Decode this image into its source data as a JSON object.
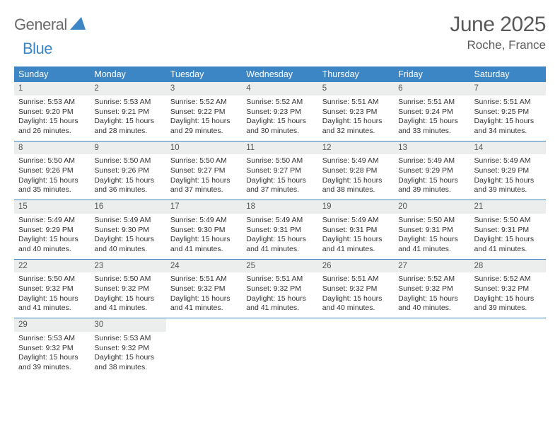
{
  "logo": {
    "text1": "General",
    "text2": "Blue"
  },
  "title": "June 2025",
  "location": "Roche, France",
  "colors": {
    "header_bg": "#3d86c6",
    "header_text": "#ffffff",
    "daynum_bg": "#eceded",
    "border": "#3d86c6",
    "text": "#333333",
    "title_text": "#5a5a5a"
  },
  "day_names": [
    "Sunday",
    "Monday",
    "Tuesday",
    "Wednesday",
    "Thursday",
    "Friday",
    "Saturday"
  ],
  "weeks": [
    [
      {
        "n": "1",
        "sr": "Sunrise: 5:53 AM",
        "ss": "Sunset: 9:20 PM",
        "d1": "Daylight: 15 hours",
        "d2": "and 26 minutes."
      },
      {
        "n": "2",
        "sr": "Sunrise: 5:53 AM",
        "ss": "Sunset: 9:21 PM",
        "d1": "Daylight: 15 hours",
        "d2": "and 28 minutes."
      },
      {
        "n": "3",
        "sr": "Sunrise: 5:52 AM",
        "ss": "Sunset: 9:22 PM",
        "d1": "Daylight: 15 hours",
        "d2": "and 29 minutes."
      },
      {
        "n": "4",
        "sr": "Sunrise: 5:52 AM",
        "ss": "Sunset: 9:23 PM",
        "d1": "Daylight: 15 hours",
        "d2": "and 30 minutes."
      },
      {
        "n": "5",
        "sr": "Sunrise: 5:51 AM",
        "ss": "Sunset: 9:23 PM",
        "d1": "Daylight: 15 hours",
        "d2": "and 32 minutes."
      },
      {
        "n": "6",
        "sr": "Sunrise: 5:51 AM",
        "ss": "Sunset: 9:24 PM",
        "d1": "Daylight: 15 hours",
        "d2": "and 33 minutes."
      },
      {
        "n": "7",
        "sr": "Sunrise: 5:51 AM",
        "ss": "Sunset: 9:25 PM",
        "d1": "Daylight: 15 hours",
        "d2": "and 34 minutes."
      }
    ],
    [
      {
        "n": "8",
        "sr": "Sunrise: 5:50 AM",
        "ss": "Sunset: 9:26 PM",
        "d1": "Daylight: 15 hours",
        "d2": "and 35 minutes."
      },
      {
        "n": "9",
        "sr": "Sunrise: 5:50 AM",
        "ss": "Sunset: 9:26 PM",
        "d1": "Daylight: 15 hours",
        "d2": "and 36 minutes."
      },
      {
        "n": "10",
        "sr": "Sunrise: 5:50 AM",
        "ss": "Sunset: 9:27 PM",
        "d1": "Daylight: 15 hours",
        "d2": "and 37 minutes."
      },
      {
        "n": "11",
        "sr": "Sunrise: 5:50 AM",
        "ss": "Sunset: 9:27 PM",
        "d1": "Daylight: 15 hours",
        "d2": "and 37 minutes."
      },
      {
        "n": "12",
        "sr": "Sunrise: 5:49 AM",
        "ss": "Sunset: 9:28 PM",
        "d1": "Daylight: 15 hours",
        "d2": "and 38 minutes."
      },
      {
        "n": "13",
        "sr": "Sunrise: 5:49 AM",
        "ss": "Sunset: 9:29 PM",
        "d1": "Daylight: 15 hours",
        "d2": "and 39 minutes."
      },
      {
        "n": "14",
        "sr": "Sunrise: 5:49 AM",
        "ss": "Sunset: 9:29 PM",
        "d1": "Daylight: 15 hours",
        "d2": "and 39 minutes."
      }
    ],
    [
      {
        "n": "15",
        "sr": "Sunrise: 5:49 AM",
        "ss": "Sunset: 9:29 PM",
        "d1": "Daylight: 15 hours",
        "d2": "and 40 minutes."
      },
      {
        "n": "16",
        "sr": "Sunrise: 5:49 AM",
        "ss": "Sunset: 9:30 PM",
        "d1": "Daylight: 15 hours",
        "d2": "and 40 minutes."
      },
      {
        "n": "17",
        "sr": "Sunrise: 5:49 AM",
        "ss": "Sunset: 9:30 PM",
        "d1": "Daylight: 15 hours",
        "d2": "and 41 minutes."
      },
      {
        "n": "18",
        "sr": "Sunrise: 5:49 AM",
        "ss": "Sunset: 9:31 PM",
        "d1": "Daylight: 15 hours",
        "d2": "and 41 minutes."
      },
      {
        "n": "19",
        "sr": "Sunrise: 5:49 AM",
        "ss": "Sunset: 9:31 PM",
        "d1": "Daylight: 15 hours",
        "d2": "and 41 minutes."
      },
      {
        "n": "20",
        "sr": "Sunrise: 5:50 AM",
        "ss": "Sunset: 9:31 PM",
        "d1": "Daylight: 15 hours",
        "d2": "and 41 minutes."
      },
      {
        "n": "21",
        "sr": "Sunrise: 5:50 AM",
        "ss": "Sunset: 9:31 PM",
        "d1": "Daylight: 15 hours",
        "d2": "and 41 minutes."
      }
    ],
    [
      {
        "n": "22",
        "sr": "Sunrise: 5:50 AM",
        "ss": "Sunset: 9:32 PM",
        "d1": "Daylight: 15 hours",
        "d2": "and 41 minutes."
      },
      {
        "n": "23",
        "sr": "Sunrise: 5:50 AM",
        "ss": "Sunset: 9:32 PM",
        "d1": "Daylight: 15 hours",
        "d2": "and 41 minutes."
      },
      {
        "n": "24",
        "sr": "Sunrise: 5:51 AM",
        "ss": "Sunset: 9:32 PM",
        "d1": "Daylight: 15 hours",
        "d2": "and 41 minutes."
      },
      {
        "n": "25",
        "sr": "Sunrise: 5:51 AM",
        "ss": "Sunset: 9:32 PM",
        "d1": "Daylight: 15 hours",
        "d2": "and 41 minutes."
      },
      {
        "n": "26",
        "sr": "Sunrise: 5:51 AM",
        "ss": "Sunset: 9:32 PM",
        "d1": "Daylight: 15 hours",
        "d2": "and 40 minutes."
      },
      {
        "n": "27",
        "sr": "Sunrise: 5:52 AM",
        "ss": "Sunset: 9:32 PM",
        "d1": "Daylight: 15 hours",
        "d2": "and 40 minutes."
      },
      {
        "n": "28",
        "sr": "Sunrise: 5:52 AM",
        "ss": "Sunset: 9:32 PM",
        "d1": "Daylight: 15 hours",
        "d2": "and 39 minutes."
      }
    ],
    [
      {
        "n": "29",
        "sr": "Sunrise: 5:53 AM",
        "ss": "Sunset: 9:32 PM",
        "d1": "Daylight: 15 hours",
        "d2": "and 39 minutes."
      },
      {
        "n": "30",
        "sr": "Sunrise: 5:53 AM",
        "ss": "Sunset: 9:32 PM",
        "d1": "Daylight: 15 hours",
        "d2": "and 38 minutes."
      },
      null,
      null,
      null,
      null,
      null
    ]
  ]
}
